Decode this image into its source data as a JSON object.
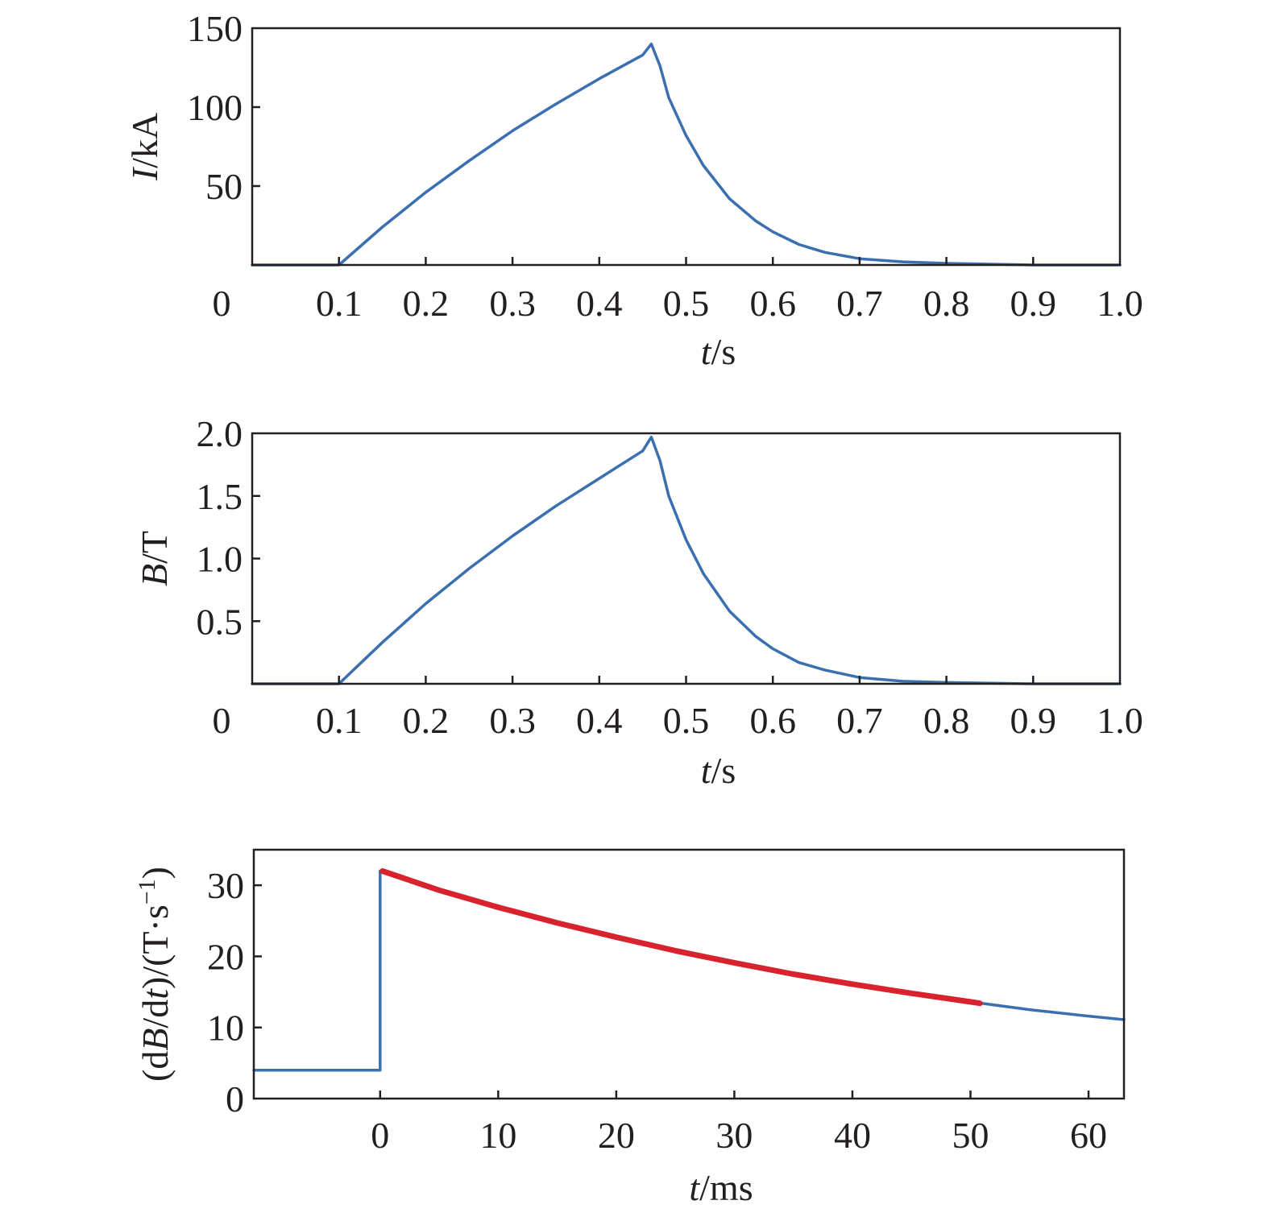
{
  "chart_data": [
    {
      "type": "line",
      "xlabel": {
        "var": "t",
        "unit": "/s"
      },
      "ylabel": {
        "var": "I",
        "unit": "/kA"
      },
      "xlim": [
        0,
        1.0
      ],
      "ylim": [
        0,
        150
      ],
      "x_origin_label": "0",
      "xticks": [
        "0.1",
        "0.2",
        "0.3",
        "0.4",
        "0.5",
        "0.6",
        "0.7",
        "0.8",
        "0.9",
        "1.0"
      ],
      "yticks": [
        "50",
        "100",
        "150"
      ],
      "grid": false,
      "colors": {
        "series": "#3a6fb0"
      },
      "series": [
        {
          "x": [
            0,
            0.1,
            0.15,
            0.2,
            0.25,
            0.3,
            0.35,
            0.4,
            0.45,
            0.46,
            0.47,
            0.48,
            0.5,
            0.52,
            0.55,
            0.58,
            0.6,
            0.63,
            0.66,
            0.7,
            0.75,
            0.8,
            0.9,
            1.0
          ],
          "y": [
            0,
            0,
            24,
            46,
            66,
            85,
            102,
            118,
            133,
            140,
            126,
            106,
            82,
            63,
            42,
            28,
            21,
            13,
            8,
            4,
            2,
            1,
            0,
            0
          ]
        }
      ]
    },
    {
      "type": "line",
      "xlabel": {
        "var": "t",
        "unit": "/s"
      },
      "ylabel": {
        "var": "B",
        "unit": "/T"
      },
      "xlim": [
        0,
        1.0
      ],
      "ylim": [
        0,
        2.0
      ],
      "x_origin_label": "0",
      "xticks": [
        "0.1",
        "0.2",
        "0.3",
        "0.4",
        "0.5",
        "0.6",
        "0.7",
        "0.8",
        "0.9",
        "1.0"
      ],
      "yticks": [
        "0.5",
        "1.0",
        "1.5",
        "2.0"
      ],
      "grid": false,
      "colors": {
        "series": "#3a6fb0"
      },
      "series": [
        {
          "x": [
            0,
            0.1,
            0.15,
            0.2,
            0.25,
            0.3,
            0.35,
            0.4,
            0.45,
            0.46,
            0.47,
            0.48,
            0.5,
            0.52,
            0.55,
            0.58,
            0.6,
            0.63,
            0.66,
            0.7,
            0.75,
            0.8,
            0.9,
            1.0
          ],
          "y": [
            0,
            0,
            0.33,
            0.64,
            0.92,
            1.18,
            1.42,
            1.64,
            1.86,
            1.97,
            1.78,
            1.5,
            1.15,
            0.88,
            0.58,
            0.38,
            0.28,
            0.17,
            0.11,
            0.05,
            0.02,
            0.01,
            0,
            0
          ]
        }
      ]
    },
    {
      "type": "line",
      "xlabel": {
        "var": "t",
        "unit": "/ms"
      },
      "ylabel": {
        "pre": "(d",
        "var": "B",
        "mid": "/d",
        "var2": "t",
        "post": ")/(T·s",
        "sup": "−1",
        "end": ")"
      },
      "xlim": [
        -10.7,
        63
      ],
      "ylim": [
        0,
        35
      ],
      "xticks": [
        "0",
        "10",
        "20",
        "30",
        "40",
        "50",
        "60"
      ],
      "yticks": [
        "0",
        "10",
        "20",
        "30"
      ],
      "grid": false,
      "colors": {
        "base": "#3a6fb0",
        "highlight": "#d8232f"
      },
      "series": [
        {
          "x": [
            -10.7,
            0,
            0,
            0.2,
            5,
            10,
            15,
            20,
            25,
            30,
            35,
            40,
            45,
            50,
            55,
            60,
            63
          ],
          "y": [
            4,
            4,
            32,
            32,
            29.3,
            26.9,
            24.7,
            22.7,
            20.8,
            19.1,
            17.5,
            16.1,
            14.8,
            13.6,
            12.5,
            11.6,
            11.1
          ]
        },
        {
          "x": [
            0.2,
            5,
            10,
            15,
            20,
            25,
            30,
            35,
            40,
            45,
            50,
            50.8
          ],
          "y": [
            32,
            29.3,
            26.9,
            24.7,
            22.7,
            20.8,
            19.1,
            17.5,
            16.1,
            14.8,
            13.6,
            13.4
          ]
        }
      ]
    }
  ]
}
